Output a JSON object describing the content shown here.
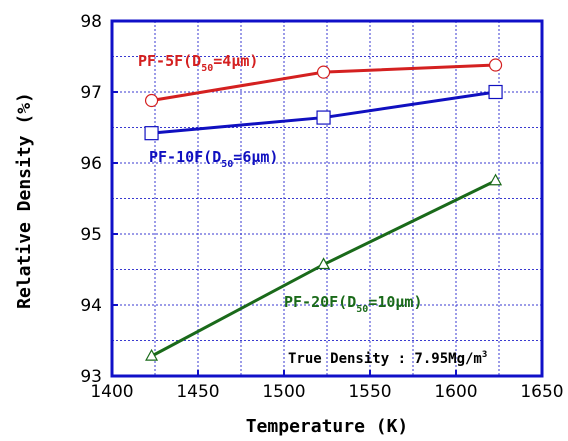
{
  "chart_data": {
    "type": "line",
    "xlabel": "Temperature (K)",
    "ylabel": "Relative Density (%)",
    "xlim": [
      1400,
      1650
    ],
    "ylim": [
      93,
      98
    ],
    "xticks": [
      1400,
      1450,
      1500,
      1550,
      1600,
      1650
    ],
    "yticks": [
      93,
      94,
      95,
      96,
      97,
      98
    ],
    "grid": true,
    "series": [
      {
        "name": "PF-5F",
        "label_prefix": "PF-5F(D",
        "label_sub": "50",
        "label_suffix": "=4μm)",
        "color": "#d42020",
        "marker": "circle",
        "x": [
          1423,
          1523,
          1623
        ],
        "y": [
          96.88,
          97.28,
          97.38
        ]
      },
      {
        "name": "PF-10F",
        "label_prefix": "PF-10F(D",
        "label_sub": "50",
        "label_suffix": "=6μm)",
        "color": "#1010c0",
        "marker": "square",
        "x": [
          1423,
          1523,
          1623
        ],
        "y": [
          96.42,
          96.64,
          97.0
        ]
      },
      {
        "name": "PF-20F",
        "label_prefix": "PF-20F(D",
        "label_sub": "50",
        "label_suffix": "=10μm)",
        "color": "#1a6a1a",
        "marker": "triangle",
        "x": [
          1423,
          1523,
          1623
        ],
        "y": [
          93.28,
          94.57,
          95.75
        ]
      }
    ],
    "annotation": {
      "text": "True Density : 7.95Mg/m",
      "sup": "3"
    }
  }
}
